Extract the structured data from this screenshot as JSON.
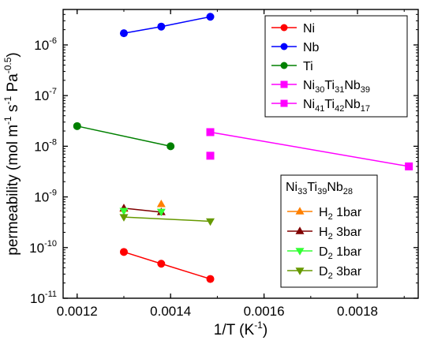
{
  "chart_data": {
    "type": "scatter",
    "xlabel": "1/T (K",
    "xlabel_sup": "-1",
    "xlabel_tail": ")",
    "ylabel_parts": [
      {
        "t": "permeability (mol m",
        "sup": false
      },
      {
        "t": "-1",
        "sup": true
      },
      {
        "t": " s",
        "sup": false
      },
      {
        "t": "-1",
        "sup": true
      },
      {
        "t": " Pa",
        "sup": false
      },
      {
        "t": "-0.5",
        "sup": true
      },
      {
        "t": ")",
        "sup": false
      }
    ],
    "xlim": [
      0.00117,
      0.00193
    ],
    "ylim_log10": [
      -11,
      -5.3
    ],
    "yscale": "log",
    "xticks": [
      0.0012,
      0.0014,
      0.0016,
      0.0018
    ],
    "xtick_labels": [
      "0.0012",
      "0.0014",
      "0.0016",
      "0.0018"
    ],
    "yticks_exp": [
      -11,
      -10,
      -9,
      -8,
      -7,
      -6
    ],
    "ytick_mantissa": "10",
    "ytick_exps": [
      "-11",
      "-10",
      "-9",
      "-8",
      "-7",
      "-6"
    ],
    "series": [
      {
        "name": "Ni",
        "color": "#ff0000",
        "marker": "circle",
        "line": true,
        "x": [
          0.0013,
          0.00138,
          0.001485
        ],
        "y": [
          8.2e-11,
          4.8e-11,
          2.4e-11
        ]
      },
      {
        "name": "Nb",
        "color": "#0000ff",
        "marker": "circle",
        "line": true,
        "x": [
          0.0013,
          0.00138,
          0.001485
        ],
        "y": [
          1.7e-06,
          2.3e-06,
          3.6e-06
        ]
      },
      {
        "name": "Ti",
        "color": "#008000",
        "marker": "circle",
        "line": true,
        "x": [
          0.0012,
          0.0014
        ],
        "y": [
          2.5e-08,
          1e-08
        ]
      },
      {
        "name": "Ni30Ti31Nb39",
        "color": "#ff00ff",
        "marker": "square",
        "line": false,
        "x": [
          0.001485
        ],
        "y": [
          6.5e-09
        ]
      },
      {
        "name": "Ni41Ti42Nb17",
        "color": "#ff00ff",
        "marker": "square",
        "line": true,
        "x": [
          0.001485,
          0.00191
        ],
        "y": [
          1.9e-08,
          4e-09
        ]
      },
      {
        "name": "H2 1bar",
        "color": "#ff8000",
        "marker": "triangle-up",
        "line": false,
        "x": [
          0.0013,
          0.00138
        ],
        "y": [
          5.8e-10,
          7.2e-10
        ]
      },
      {
        "name": "H2 3bar",
        "color": "#800000",
        "marker": "triangle-up",
        "line": true,
        "x": [
          0.0013,
          0.00138
        ],
        "y": [
          6e-10,
          5e-10
        ]
      },
      {
        "name": "D2 1bar",
        "color": "#33ff33",
        "marker": "triangle-down",
        "line": false,
        "x": [
          0.0013,
          0.00138
        ],
        "y": [
          5.3e-10,
          5.1e-10
        ]
      },
      {
        "name": "D2 3bar",
        "color": "#669900",
        "marker": "triangle-down",
        "line": true,
        "x": [
          0.0013,
          0.001485
        ],
        "y": [
          4e-10,
          3.3e-10
        ]
      }
    ],
    "legend1": {
      "placement": "top-right",
      "entries": [
        {
          "series": 0,
          "parts": [
            {
              "t": "Ni",
              "sub": false
            }
          ]
        },
        {
          "series": 1,
          "parts": [
            {
              "t": "Nb",
              "sub": false
            }
          ]
        },
        {
          "series": 2,
          "parts": [
            {
              "t": "Ti",
              "sub": false
            }
          ]
        },
        {
          "series": 3,
          "parts": [
            {
              "t": "Ni",
              "sub": false
            },
            {
              "t": "30",
              "sub": true
            },
            {
              "t": "Ti",
              "sub": false
            },
            {
              "t": "31",
              "sub": true
            },
            {
              "t": "Nb",
              "sub": false
            },
            {
              "t": "39",
              "sub": true
            }
          ]
        },
        {
          "series": 4,
          "parts": [
            {
              "t": "Ni",
              "sub": false
            },
            {
              "t": "41",
              "sub": true
            },
            {
              "t": "Ti",
              "sub": false
            },
            {
              "t": "42",
              "sub": true
            },
            {
              "t": "Nb",
              "sub": false
            },
            {
              "t": "17",
              "sub": true
            }
          ]
        }
      ]
    },
    "legend2": {
      "placement": "bottom-right",
      "title_parts": [
        {
          "t": "Ni",
          "sub": false
        },
        {
          "t": "33",
          "sub": true
        },
        {
          "t": "Ti",
          "sub": false
        },
        {
          "t": "39",
          "sub": true
        },
        {
          "t": "Nb",
          "sub": false
        },
        {
          "t": "28",
          "sub": true
        }
      ],
      "entries": [
        {
          "series": 5,
          "parts": [
            {
              "t": "H",
              "sub": false
            },
            {
              "t": "2",
              "sub": true
            },
            {
              "t": " 1bar",
              "sub": false
            }
          ]
        },
        {
          "series": 6,
          "parts": [
            {
              "t": "H",
              "sub": false
            },
            {
              "t": "2",
              "sub": true
            },
            {
              "t": " 3bar",
              "sub": false
            }
          ]
        },
        {
          "series": 7,
          "parts": [
            {
              "t": "D",
              "sub": false
            },
            {
              "t": "2",
              "sub": true
            },
            {
              "t": " 1bar",
              "sub": false
            }
          ]
        },
        {
          "series": 8,
          "parts": [
            {
              "t": "D",
              "sub": false
            },
            {
              "t": "2",
              "sub": true
            },
            {
              "t": " 3bar",
              "sub": false
            }
          ]
        }
      ]
    }
  }
}
